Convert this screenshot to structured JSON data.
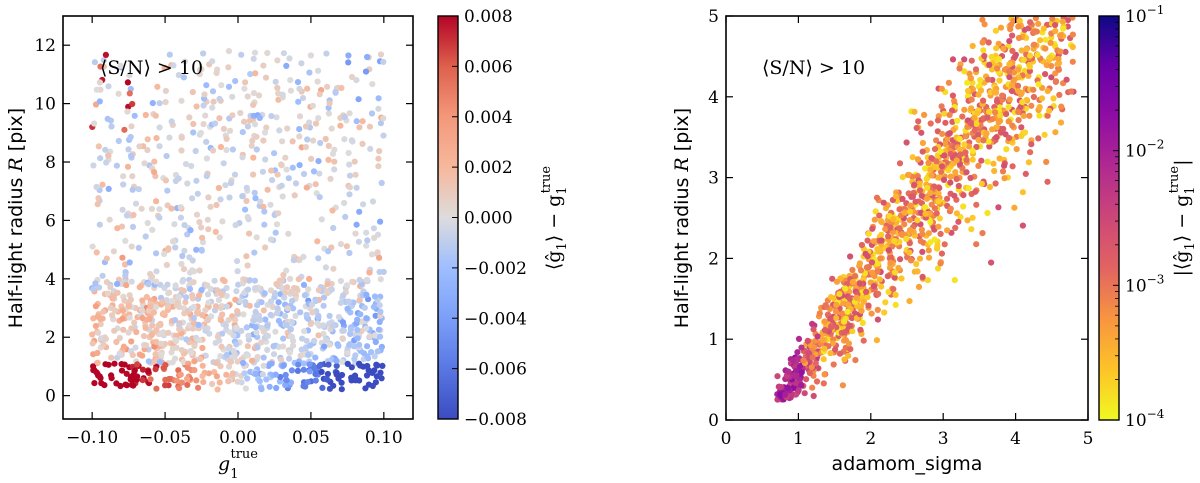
{
  "chart_data": [
    {
      "type": "scatter",
      "title": "",
      "xlabel": "g1true",
      "xlabel_main": "g",
      "xlabel_sub": "1",
      "xlabel_sup": "true",
      "ylabel": "Half-light radius R [pix]",
      "ylabel_prefix": "Half-light radius ",
      "ylabel_var": "R",
      "ylabel_suffix": " [pix]",
      "xlim": [
        -0.12,
        0.12
      ],
      "ylim": [
        -0.8,
        13.0
      ],
      "xticks": [
        -0.1,
        -0.05,
        0.0,
        0.05,
        0.1
      ],
      "xtick_labels": [
        "−0.10",
        "−0.05",
        "0.00",
        "0.05",
        "0.10"
      ],
      "yticks": [
        0,
        2,
        4,
        6,
        8,
        10,
        12
      ],
      "ytick_labels": [
        "0",
        "2",
        "4",
        "6",
        "8",
        "10",
        "12"
      ],
      "annotation": "⟨S/N⟩ > 10",
      "colorbar": {
        "label": "⟨ĝ1⟩ − g1true",
        "label_main": "⟨ĝ",
        "label_sub": "1",
        "label_mid": "⟩ − g",
        "label_sub2": "1",
        "label_sup2": "true",
        "colormap": "coolwarm",
        "range": [
          -0.008,
          0.008
        ],
        "ticks": [
          -0.008,
          -0.006,
          -0.004,
          -0.002,
          0.0,
          0.002,
          0.004,
          0.006,
          0.008
        ],
        "tick_labels": [
          "−0.008",
          "−0.006",
          "−0.004",
          "−0.002",
          "0.000",
          "0.002",
          "0.004",
          "0.006",
          "0.008"
        ]
      },
      "n_points": 1500,
      "point_model": "uniform in g1 over [-0.1,0.1]; R mostly 0.3-12; bias ~ positive for g1<0 and negative for g1>0 at small R (R<1), near zero elsewhere"
    },
    {
      "type": "scatter",
      "title": "",
      "xlabel": "adamom_sigma",
      "ylabel": "Half-light radius R [pix]",
      "ylabel_prefix": "Half-light radius ",
      "ylabel_var": "R",
      "ylabel_suffix": " [pix]",
      "xlim": [
        0,
        5
      ],
      "ylim": [
        0,
        5
      ],
      "xticks": [
        0,
        1,
        2,
        3,
        4,
        5
      ],
      "xtick_labels": [
        "0",
        "1",
        "2",
        "3",
        "4",
        "5"
      ],
      "yticks": [
        0,
        1,
        2,
        3,
        4,
        5
      ],
      "ytick_labels": [
        "0",
        "1",
        "2",
        "3",
        "4",
        "5"
      ],
      "annotation": "⟨S/N⟩ > 10",
      "colorbar": {
        "label": "|⟨ĝ1⟩ − g1true|",
        "label_main": "|⟨ĝ",
        "label_sub": "1",
        "label_mid": "⟩ − g",
        "label_sub2": "1",
        "label_sup2": "true",
        "label_end": "|",
        "colormap": "plasma_r",
        "scale": "log",
        "range": [
          0.0001,
          0.1
        ],
        "ticks": [
          0.0001,
          0.001,
          0.01,
          0.1
        ],
        "tick_base": "10",
        "tick_exps": [
          "−4",
          "−3",
          "−2",
          "−1"
        ]
      },
      "n_points": 1500,
      "point_model": "R grows roughly linearly with adamom_sigma from (0.7,0.3) to (4.8,5); scatter widens with size; dark purple (large bias) at small sizes"
    }
  ]
}
